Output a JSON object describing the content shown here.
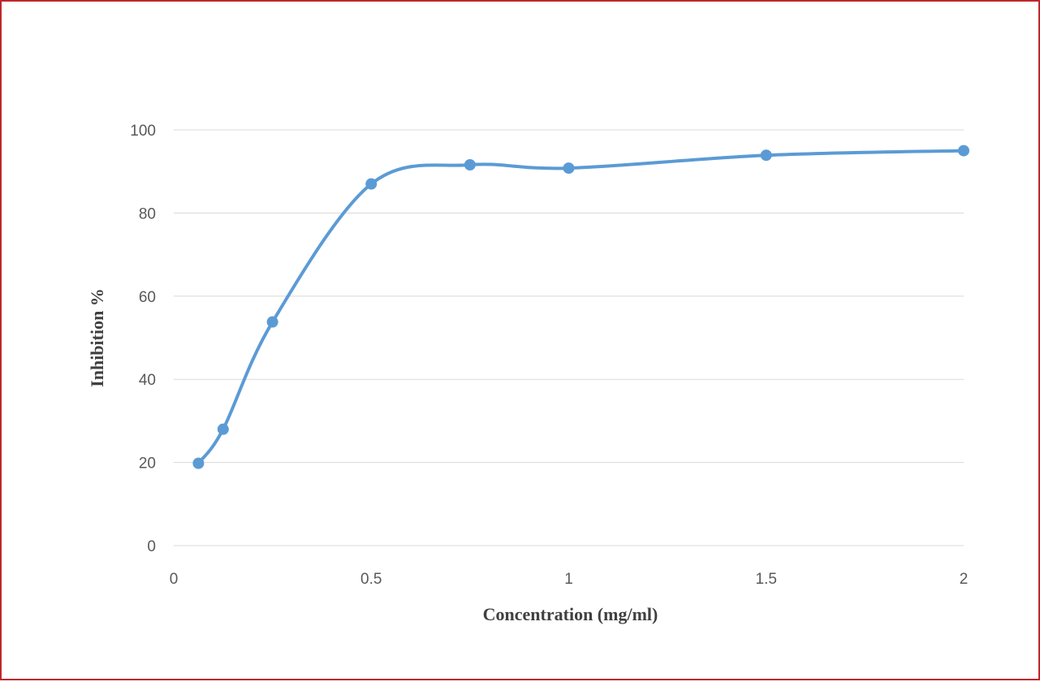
{
  "chart_data": {
    "type": "scatter",
    "title": "",
    "xlabel": "Concentration (mg/ml)",
    "ylabel": "Inhibition %",
    "xlim": [
      0,
      2
    ],
    "ylim": [
      0,
      100
    ],
    "x_ticks": [
      0,
      0.5,
      1,
      1.5,
      2
    ],
    "x_tick_labels": [
      "0",
      "0.5",
      "1",
      "1.5",
      "2"
    ],
    "y_ticks": [
      0,
      20,
      40,
      60,
      80,
      100
    ],
    "y_tick_labels": [
      "0",
      "20",
      "40",
      "60",
      "80",
      "100"
    ],
    "grid": "horizontal",
    "smooth_line": true,
    "legend": "none",
    "series": [
      {
        "color": "#5b9bd5",
        "x": [
          0.0625,
          0.125,
          0.25,
          0.5,
          0.75,
          1,
          1.5,
          2
        ],
        "values": [
          19.8,
          28,
          53.8,
          87,
          91.6,
          90.8,
          93.9,
          95
        ]
      }
    ]
  },
  "colors": {
    "frame_border": "#c0272d",
    "series": "#5b9bd5",
    "grid": "#d9d9d9",
    "tick_text": "#595959",
    "axis_title_text": "#404040"
  }
}
